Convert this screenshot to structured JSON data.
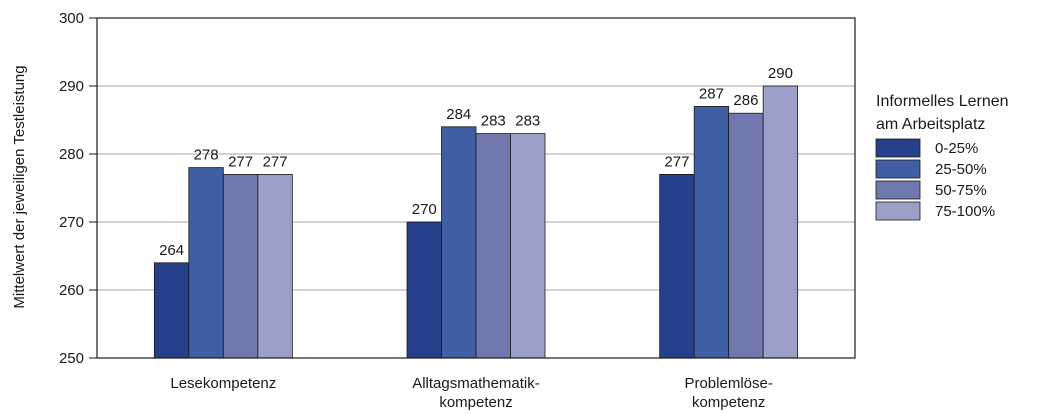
{
  "chart_data": {
    "type": "bar",
    "title": "",
    "xlabel": "",
    "ylabel": "Mittelwert der jeweiligen Testleistung",
    "ylim": [
      250,
      300
    ],
    "yticks": [
      250,
      260,
      270,
      280,
      290,
      300
    ],
    "grid": true,
    "legend_position": "right",
    "categories": [
      [
        "Lesekompetenz"
      ],
      [
        "Alltagsmathematik-",
        "kompetenz"
      ],
      [
        "Problemlöse-",
        "kompetenz"
      ]
    ],
    "legend_title": [
      "Informelles Lernen",
      "am Arbeitsplatz"
    ],
    "series": [
      {
        "name": "0-25%",
        "color": "#27408b",
        "values": [
          264,
          270,
          277
        ]
      },
      {
        "name": "25-50%",
        "color": "#405ea3",
        "values": [
          278,
          284,
          287
        ]
      },
      {
        "name": "50-75%",
        "color": "#7078ad",
        "values": [
          277,
          283,
          286
        ]
      },
      {
        "name": "75-100%",
        "color": "#9aa0c8",
        "values": [
          277,
          283,
          290
        ]
      }
    ]
  }
}
